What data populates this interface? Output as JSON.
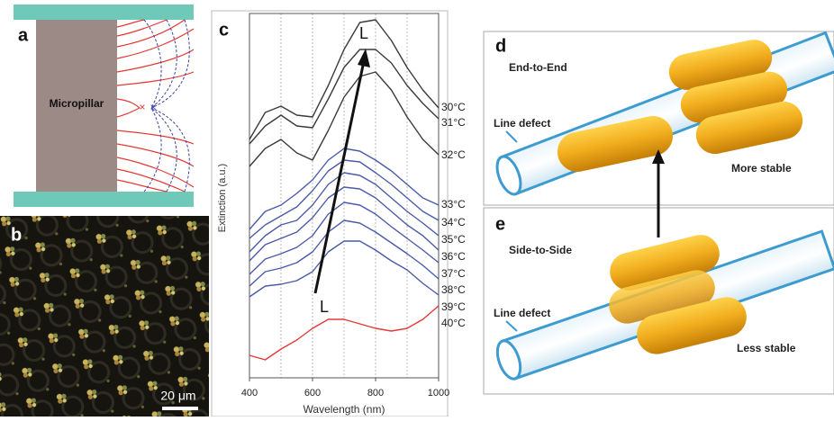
{
  "panels": {
    "a": {
      "label": "a",
      "text": "Micropillar"
    },
    "b": {
      "label": "b",
      "scale_bar": "20 μm"
    },
    "c": {
      "label": "c",
      "chart": {
        "type": "line",
        "xlabel": "Wavelength (nm)",
        "ylabel": "Extinction (a.u.)",
        "x": [
          400,
          450,
          500,
          550,
          600,
          650,
          700,
          750,
          800,
          850,
          900,
          950,
          1000
        ],
        "xlim": [
          400,
          1000
        ],
        "xticks": [
          400,
          600,
          800,
          1000
        ],
        "xgrid": [
          500,
          600,
          700,
          800,
          900
        ],
        "ylim": [
          0,
          405
        ],
        "annotations": [
          "L",
          "L"
        ],
        "series": [
          {
            "name": "30°C",
            "color": "#3a3a3a",
            "values": [
              265,
              295,
              302,
              292,
              290,
              325,
              365,
              395,
              398,
              375,
              345,
              320,
              300
            ]
          },
          {
            "name": "31°C",
            "color": "#3a3a3a",
            "values": [
              260,
              280,
              292,
              280,
              278,
              310,
              345,
              365,
              365,
              350,
              325,
              305,
              288
            ]
          },
          {
            "name": "32°C",
            "color": "#3a3a3a",
            "values": [
              235,
              255,
              265,
              250,
              242,
              275,
              312,
              335,
              340,
              320,
              290,
              265,
              248
            ]
          },
          {
            "name": "33°C",
            "color": "#4a5aa8",
            "values": [
              165,
              185,
              192,
              205,
              220,
              242,
              255,
              252,
              242,
              230,
              215,
              200,
              192
            ]
          },
          {
            "name": "34°C",
            "color": "#4a5aa8",
            "values": [
              155,
              170,
              180,
              190,
              208,
              230,
              242,
              240,
              228,
              215,
              200,
              185,
              175
            ]
          },
          {
            "name": "35°C",
            "color": "#4a5aa8",
            "values": [
              140,
              158,
              170,
              175,
              192,
              215,
              228,
              225,
              215,
              200,
              185,
              172,
              158
            ]
          },
          {
            "name": "36°C",
            "color": "#4a5aa8",
            "values": [
              130,
              148,
              155,
              162,
              178,
              200,
              212,
              210,
              200,
              185,
              170,
              158,
              142
            ]
          },
          {
            "name": "37°C",
            "color": "#4a5aa8",
            "values": [
              115,
              132,
              138,
              145,
              158,
              182,
              195,
              192,
              182,
              168,
              155,
              142,
              128
            ]
          },
          {
            "name": "38°C",
            "color": "#4a5aa8",
            "values": [
              102,
              118,
              122,
              128,
              140,
              162,
              175,
              172,
              162,
              150,
              138,
              125,
              110
            ]
          },
          {
            "name": "39°C",
            "color": "#4a5aa8",
            "values": [
              90,
              102,
              104,
              108,
              118,
              140,
              152,
              152,
              142,
              130,
              120,
              105,
              92
            ]
          },
          {
            "name": "40°C",
            "color": "#e53935",
            "values": [
              25,
              20,
              32,
              42,
              55,
              65,
              65,
              60,
              55,
              52,
              55,
              65,
              80
            ]
          }
        ]
      }
    },
    "d": {
      "label": "d",
      "title": "End-to-End",
      "defect": "Line defect",
      "stability": "More stable"
    },
    "e": {
      "label": "e",
      "title": "Side-to-Side",
      "defect": "Line defect",
      "stability": "Less stable"
    }
  }
}
